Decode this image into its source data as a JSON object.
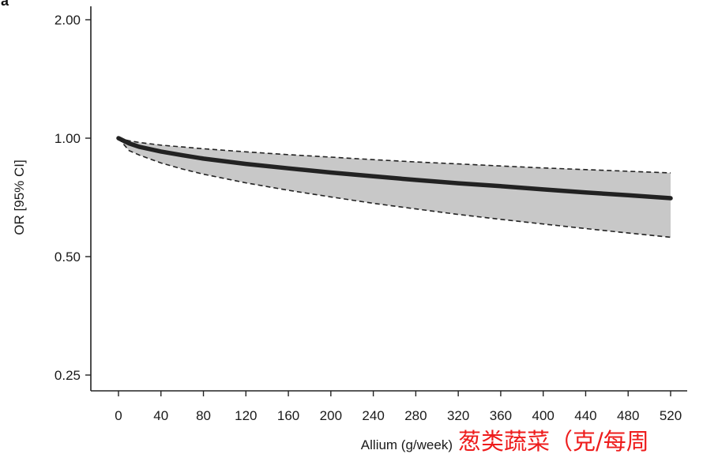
{
  "panel_label": "a",
  "chart_data": {
    "type": "line",
    "xlabel": "Allium (g/week)",
    "ylabel": "OR [95% CI]",
    "xlabel_translation": "葱类蔬菜（克/每周",
    "x_ticks": [
      0,
      40,
      80,
      120,
      160,
      200,
      240,
      280,
      320,
      360,
      400,
      440,
      480,
      520
    ],
    "y_ticks": [
      2.0,
      1.0,
      0.5,
      0.25
    ],
    "y_tick_labels": [
      "2.00",
      "1.00",
      "0.50",
      "0.25"
    ],
    "y_scale": "log",
    "xlim": [
      -20,
      545
    ],
    "ylim": [
      0.23,
      2.1
    ],
    "x": [
      0,
      10,
      20,
      40,
      60,
      80,
      120,
      160,
      200,
      240,
      280,
      320,
      360,
      400,
      440,
      480,
      520
    ],
    "or": [
      1.0,
      0.97,
      0.95,
      0.925,
      0.905,
      0.887,
      0.86,
      0.838,
      0.818,
      0.8,
      0.783,
      0.768,
      0.755,
      0.741,
      0.728,
      0.716,
      0.704
    ],
    "lower": [
      1.0,
      0.93,
      0.905,
      0.865,
      0.835,
      0.81,
      0.77,
      0.737,
      0.709,
      0.683,
      0.661,
      0.64,
      0.622,
      0.605,
      0.589,
      0.574,
      0.56
    ],
    "upper": [
      1.0,
      0.985,
      0.975,
      0.96,
      0.95,
      0.94,
      0.923,
      0.908,
      0.895,
      0.882,
      0.87,
      0.86,
      0.85,
      0.84,
      0.832,
      0.824,
      0.816
    ],
    "band_color": "#c8c8c8",
    "line_color": "#222222",
    "grid": false,
    "legend": "none"
  }
}
